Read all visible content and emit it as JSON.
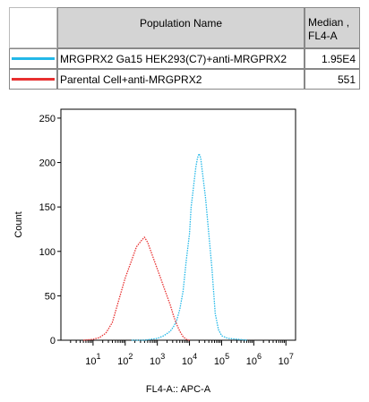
{
  "legend_table": {
    "header": {
      "population": "Population Name",
      "median": "Median ,\nFL4-A"
    },
    "rows": [
      {
        "name": "MRGPRX2 Ga15 HEK293(C7)+anti-MRGPRX2",
        "median": "1.95E4",
        "color": "#22b8e8"
      },
      {
        "name": "Parental Cell+anti-MRGPRX2",
        "median": "551",
        "color": "#e83030"
      }
    ]
  },
  "chart_data": {
    "type": "line",
    "title": "",
    "xlabel": "FL4-A:: APC-A",
    "ylabel": "Count",
    "xscale": "log",
    "xlim": [
      0,
      7.3
    ],
    "ylim": [
      0,
      260
    ],
    "y_ticks": [
      "0",
      "50",
      "100",
      "150",
      "200",
      "250"
    ],
    "x_ticks": [
      {
        "base": "10",
        "exp": "1"
      },
      {
        "base": "10",
        "exp": "2"
      },
      {
        "base": "10",
        "exp": "3"
      },
      {
        "base": "10",
        "exp": "4"
      },
      {
        "base": "10",
        "exp": "5"
      },
      {
        "base": "10",
        "exp": "6"
      },
      {
        "base": "10",
        "exp": "7"
      }
    ],
    "grid": false,
    "series": [
      {
        "name": "MRGPRX2 Ga15 HEK293(C7)+anti-MRGPRX2",
        "color": "#22b8e8",
        "x": [
          2.2,
          2.6,
          3.0,
          3.2,
          3.4,
          3.5,
          3.6,
          3.7,
          3.8,
          3.9,
          4.0,
          4.05,
          4.1,
          4.15,
          4.2,
          4.25,
          4.3,
          4.35,
          4.4,
          4.5,
          4.6,
          4.7,
          4.75,
          4.8,
          4.9,
          5.0,
          5.2,
          5.5,
          5.8
        ],
        "y": [
          0,
          0,
          2,
          5,
          10,
          15,
          22,
          35,
          55,
          90,
          120,
          150,
          165,
          180,
          195,
          205,
          210,
          205,
          190,
          160,
          120,
          80,
          55,
          30,
          12,
          5,
          2,
          1,
          0
        ]
      },
      {
        "name": "Parental Cell+anti-MRGPRX2",
        "color": "#e83030",
        "x": [
          0.7,
          1.0,
          1.2,
          1.4,
          1.6,
          1.8,
          2.0,
          2.2,
          2.35,
          2.5,
          2.6,
          2.7,
          2.8,
          2.9,
          3.0,
          3.1,
          3.2,
          3.3,
          3.4,
          3.5,
          3.6,
          3.7,
          3.8,
          3.9,
          4.0
        ],
        "y": [
          0,
          1,
          3,
          8,
          20,
          45,
          70,
          90,
          105,
          112,
          116,
          110,
          100,
          90,
          80,
          70,
          60,
          50,
          40,
          28,
          18,
          10,
          4,
          1,
          0
        ]
      }
    ]
  }
}
